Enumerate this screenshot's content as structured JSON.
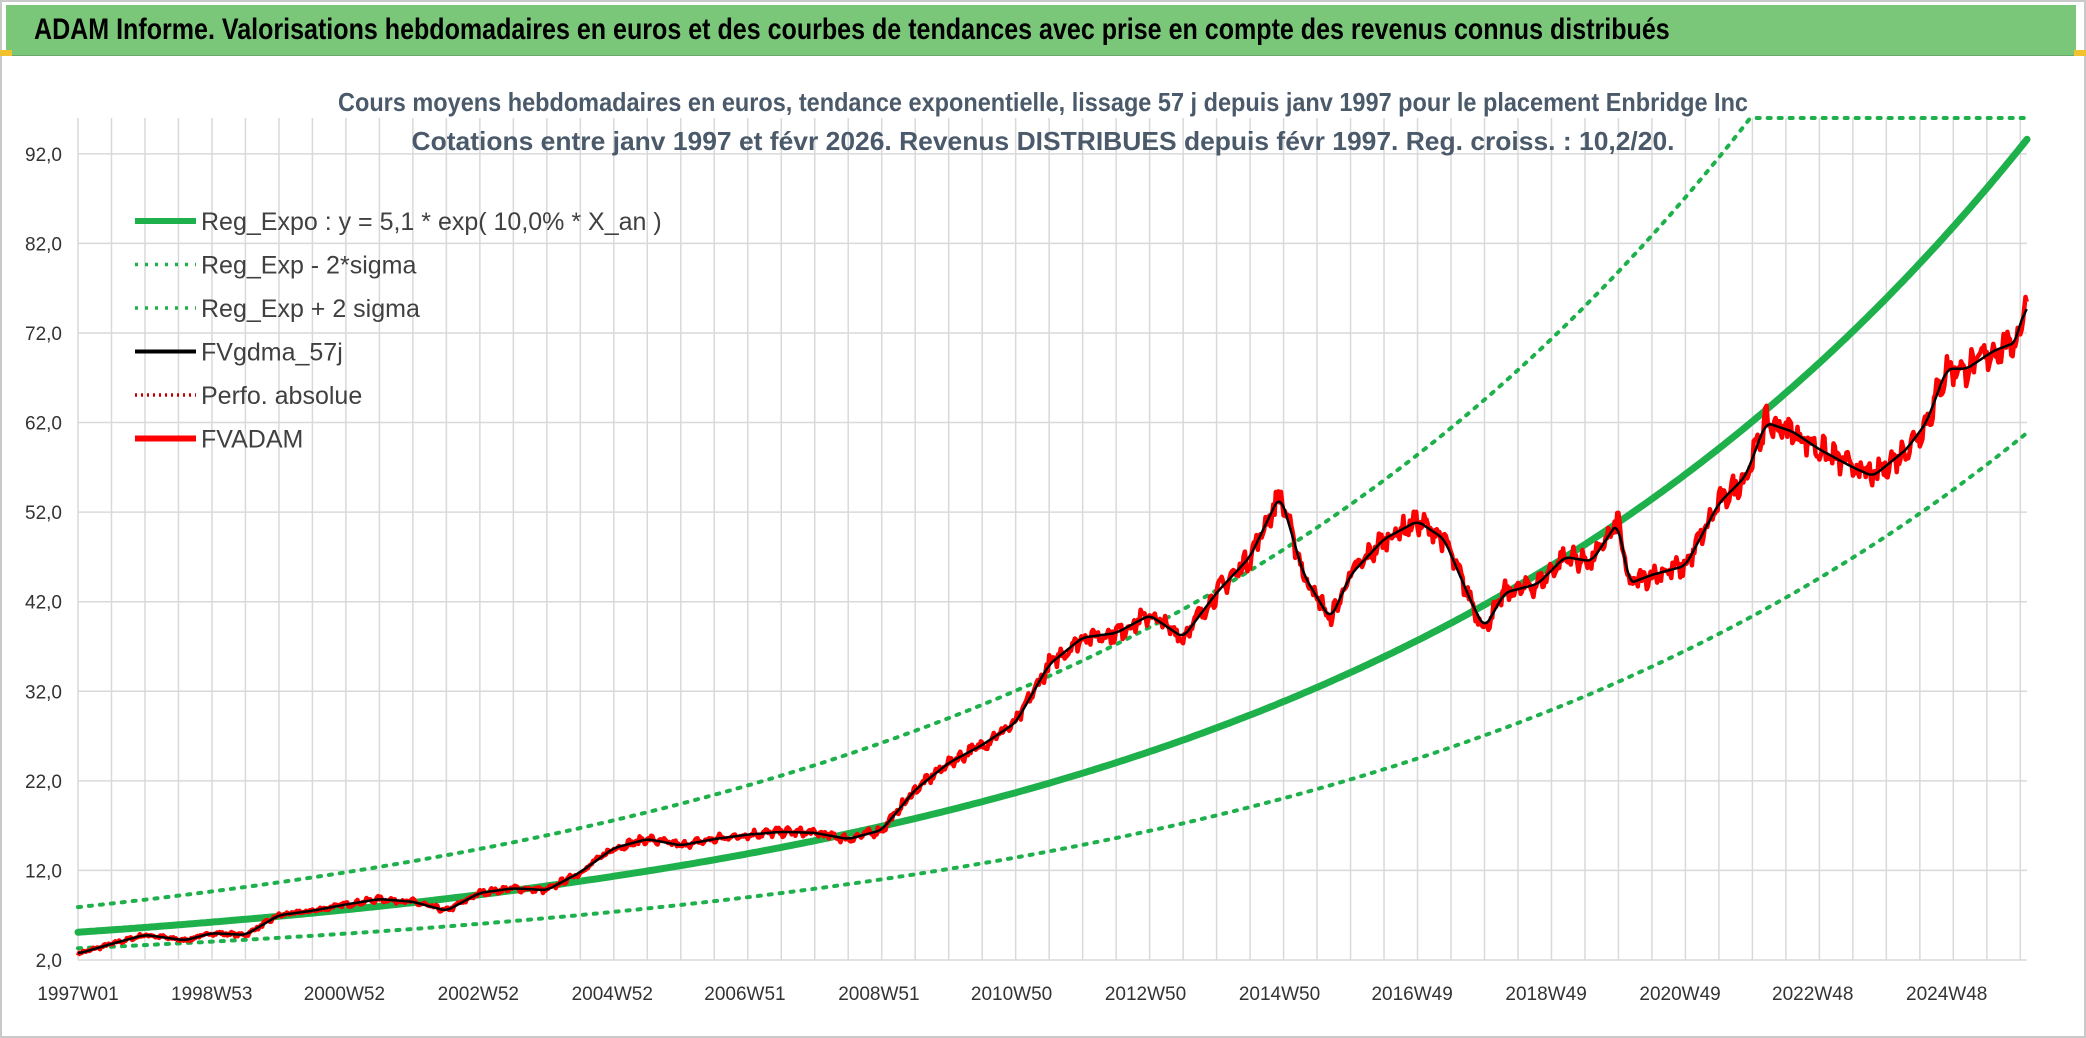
{
  "banner": {
    "title": "ADAM Informe. Valorisations hebdomadaires en euros et des courbes de tendances avec prise en compte des revenus connus distribués"
  },
  "colors": {
    "banner_bg": "#7bc77a",
    "green": "#1db04b",
    "red": "#ff0000",
    "black": "#000000",
    "grid": "#d9d9d9"
  },
  "chart_data": {
    "type": "line",
    "title": "Cours moyens hebdomadaires en euros, tendance exponentielle, lissage 57 j depuis janv 1997 pour le placement Enbridge Inc",
    "subtitle": "Cotations entre janv 1997 et févr 2026. Revenus DISTRIBUES depuis févr 1997. Reg. croiss. : 10,2/20.",
    "x_ticks": [
      "1997W01",
      "1998W53",
      "2000W52",
      "2002W52",
      "2004W52",
      "2006W51",
      "2008W51",
      "2010W50",
      "2012W50",
      "2014W50",
      "2016W49",
      "2018W49",
      "2020W49",
      "2022W48",
      "2024W48"
    ],
    "x_range": [
      1997.0,
      2026.1
    ],
    "y_ticks": [
      "2,0",
      "12,0",
      "22,0",
      "32,0",
      "42,0",
      "52,0",
      "62,0",
      "72,0",
      "82,0",
      "92,0"
    ],
    "y_range": [
      2,
      96
    ],
    "grid": true,
    "legend_position": "top-left",
    "series": [
      {
        "name": "Reg_Expo : y = 5,1 * exp( 10,0% *  X_an )",
        "style": "solid-thick",
        "color": "#1db04b",
        "model": {
          "a": 5.1,
          "rate": 0.1,
          "factor": 1.0
        }
      },
      {
        "name": "Reg_Exp - 2*sigma",
        "style": "dotted",
        "color": "#1db04b",
        "model": {
          "a": 5.1,
          "rate": 0.1,
          "factor": 0.65
        }
      },
      {
        "name": "Reg_Exp + 2 sigma",
        "style": "dotted",
        "color": "#1db04b",
        "model": {
          "a": 5.1,
          "rate": 0.1,
          "factor": 1.55
        }
      },
      {
        "name": "FVgdma_57j",
        "style": "solid",
        "color": "#000000"
      },
      {
        "name": "Perfo. absolue",
        "style": "dotted",
        "color": "#c00000"
      },
      {
        "name": "FVADAM",
        "style": "solid-thick",
        "color": "#ff0000"
      }
    ],
    "price_points": {
      "x": [
        1997.0,
        1997.5,
        1998.0,
        1998.6,
        1999.0,
        1999.5,
        2000.0,
        2000.5,
        2001.0,
        2001.5,
        2002.0,
        2002.5,
        2003.0,
        2003.5,
        2004.0,
        2004.5,
        2005.0,
        2005.5,
        2006.0,
        2006.5,
        2007.0,
        2007.5,
        2008.0,
        2008.5,
        2009.0,
        2009.5,
        2010.0,
        2010.5,
        2011.0,
        2011.5,
        2012.0,
        2012.5,
        2013.0,
        2013.5,
        2014.0,
        2014.5,
        2014.95,
        2015.3,
        2015.7,
        2016.0,
        2016.5,
        2017.0,
        2017.4,
        2017.8,
        2018.0,
        2018.3,
        2018.8,
        2019.2,
        2019.6,
        2020.0,
        2020.15,
        2020.5,
        2021.0,
        2021.5,
        2021.9,
        2022.2,
        2022.6,
        2023.0,
        2023.5,
        2023.8,
        2024.3,
        2024.6,
        2024.9,
        2025.2,
        2025.6,
        2025.95,
        2026.05
      ],
      "y": [
        2.7,
        3.8,
        4.8,
        4.2,
        5.0,
        4.8,
        7.0,
        7.5,
        8.2,
        8.8,
        8.5,
        7.5,
        9.5,
        10.0,
        9.8,
        11.8,
        14.5,
        15.5,
        14.8,
        15.5,
        16.0,
        16.3,
        16.2,
        15.5,
        16.5,
        21.0,
        24.0,
        26.0,
        28.5,
        35.0,
        38.0,
        38.5,
        40.5,
        38.0,
        43.0,
        47.0,
        54.0,
        45.0,
        40.0,
        45.0,
        49.0,
        51.0,
        49.0,
        42.0,
        39.0,
        43.0,
        44.0,
        47.0,
        46.5,
        51.0,
        44.0,
        45.0,
        46.0,
        53.0,
        56.0,
        62.0,
        61.0,
        59.0,
        57.0,
        56.0,
        59.0,
        62.0,
        68.0,
        68.0,
        70.0,
        71.0,
        75.0
      ]
    }
  }
}
